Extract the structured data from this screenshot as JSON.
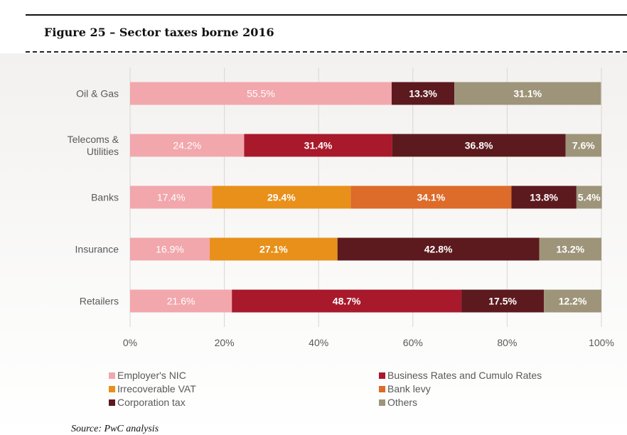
{
  "figure_title": "Figure 25 – Sector taxes borne 2016",
  "source": "Source: PwC analysis",
  "chart_data": {
    "type": "bar",
    "orientation": "horizontal",
    "stacked": true,
    "categories": [
      "Oil & Gas",
      "Telecoms & Utilities",
      "Banks",
      "Insurance",
      "Retailers"
    ],
    "category_lines": [
      [
        "Oil & Gas"
      ],
      [
        "Telecoms &",
        "Utilities"
      ],
      [
        "Banks"
      ],
      [
        "Insurance"
      ],
      [
        "Retailers"
      ]
    ],
    "series": [
      {
        "name": "Employer's NIC",
        "color": "#f2a7ac",
        "values": [
          55.5,
          24.2,
          17.4,
          16.9,
          21.6
        ],
        "labels": [
          "55.5%",
          "24.2%",
          "17.4%",
          "16.9%",
          "21.6%"
        ]
      },
      {
        "name": "Irrecoverable VAT",
        "color": "#e8901a",
        "values": [
          0,
          0,
          29.4,
          27.1,
          0
        ],
        "labels": [
          "",
          "",
          "29.4%",
          "27.1%",
          ""
        ]
      },
      {
        "name": "Bank levy",
        "color": "#dd6b2a",
        "values": [
          0,
          0,
          34.1,
          0,
          0
        ],
        "labels": [
          "",
          "",
          "34.1%",
          "",
          ""
        ]
      },
      {
        "name": "Business Rates and Cumulo Rates",
        "color": "#a8192b",
        "values": [
          0,
          31.4,
          0,
          0,
          48.7
        ],
        "labels": [
          "",
          "31.4%",
          "",
          "",
          "48.7%"
        ]
      },
      {
        "name": "Corporation tax",
        "color": "#5c1a1e",
        "values": [
          13.3,
          36.8,
          13.8,
          42.8,
          17.5
        ],
        "labels": [
          "13.3%",
          "36.8%",
          "13.8%",
          "42.8%",
          "17.5%"
        ]
      },
      {
        "name": "Others",
        "color": "#9e9479",
        "values": [
          31.1,
          7.6,
          5.4,
          13.2,
          12.2
        ],
        "labels": [
          "31.1%",
          "7.6%",
          "5.4%",
          "13.2%",
          "12.2%"
        ]
      }
    ],
    "xlim": [
      0,
      100
    ],
    "x_ticks": [
      "0%",
      "20%",
      "40%",
      "60%",
      "80%",
      "100%"
    ],
    "grid": true,
    "legend_position": "bottom",
    "legend": [
      [
        "Employer's NIC",
        "Business Rates and Cumulo Rates"
      ],
      [
        "Irrecoverable VAT",
        "Bank levy"
      ],
      [
        "Corporation tax",
        "Others"
      ]
    ],
    "label_color": "#ffffff",
    "axis_text_color": "#595959"
  }
}
